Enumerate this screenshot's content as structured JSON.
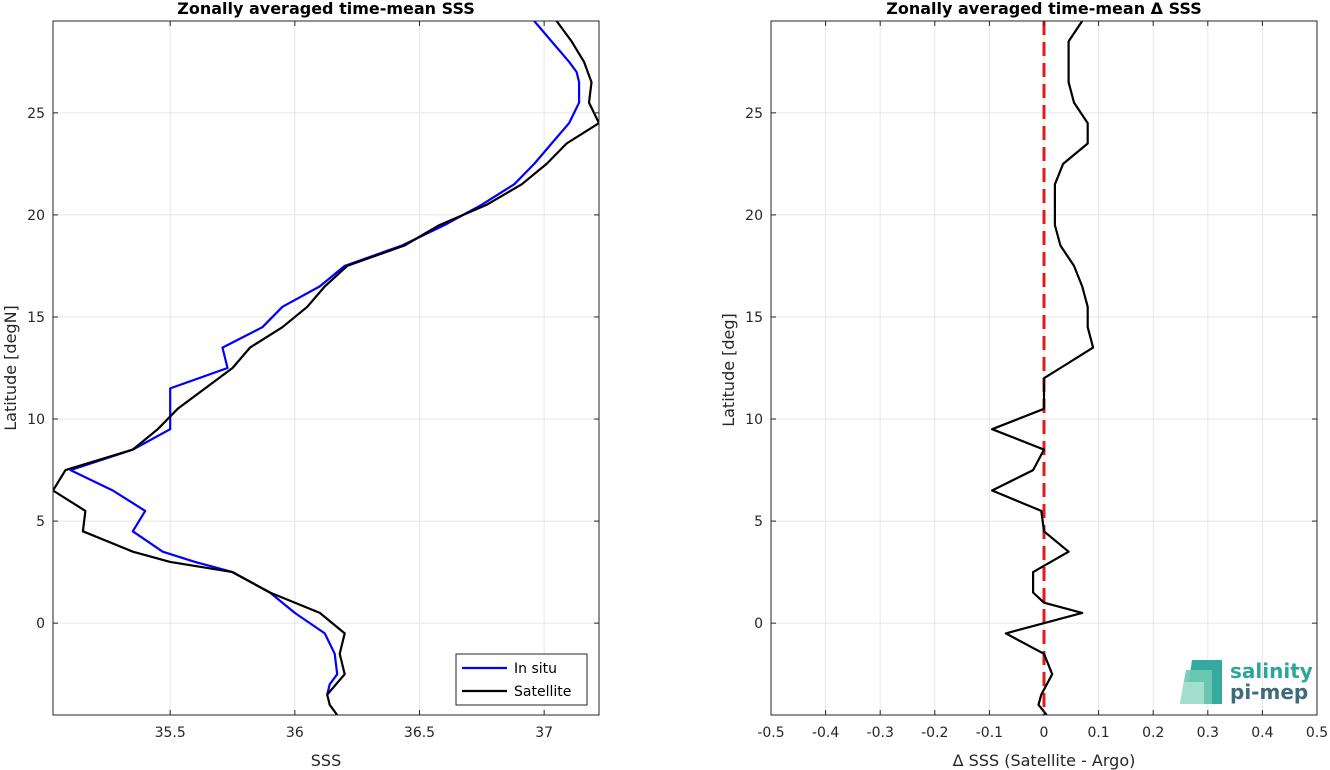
{
  "chart_data": [
    {
      "type": "line",
      "title": "Zonally averaged time-mean SSS",
      "xlabel": "SSS",
      "ylabel": "Latitude [degN]",
      "xlim": [
        35.03,
        37.22
      ],
      "ylim": [
        -4.5,
        29.5
      ],
      "xticks": [
        35.5,
        36,
        36.5,
        37
      ],
      "yticks": [
        0,
        5,
        10,
        15,
        20,
        25
      ],
      "xticklabels": [
        "35.5",
        "36",
        "36.5",
        "37"
      ],
      "yticklabels": [
        "0",
        "5",
        "10",
        "15",
        "20",
        "25"
      ],
      "grid": true,
      "legend_position": "bottom-right",
      "series": [
        {
          "name": "In situ",
          "color": "#0000ff",
          "x": [
            36.13,
            36.14,
            36.17,
            36.16,
            36.12,
            36.0,
            35.9,
            35.75,
            35.6,
            35.47,
            35.35,
            35.4,
            35.27,
            35.1,
            35.35,
            35.5,
            35.5,
            35.5,
            35.73,
            35.71,
            35.87,
            35.95,
            36.1,
            36.2,
            36.43,
            36.6,
            36.75,
            36.88,
            36.96,
            37.03,
            37.1,
            37.14,
            37.14,
            37.13,
            37.1,
            37.03,
            36.96
          ],
          "y": [
            -3.5,
            -3.0,
            -2.5,
            -1.5,
            -0.5,
            0.5,
            1.5,
            2.5,
            3.0,
            3.5,
            4.5,
            5.5,
            6.5,
            7.5,
            8.5,
            9.5,
            10.5,
            11.5,
            12.5,
            13.5,
            14.5,
            15.5,
            16.5,
            17.5,
            18.5,
            19.5,
            20.5,
            21.5,
            22.5,
            23.5,
            24.5,
            25.5,
            26.5,
            27.0,
            27.5,
            28.5,
            29.5
          ]
        },
        {
          "name": "Satellite",
          "color": "#000000",
          "x": [
            36.17,
            36.14,
            36.13,
            36.2,
            36.18,
            36.2,
            36.1,
            35.9,
            35.75,
            35.5,
            35.35,
            35.15,
            35.16,
            35.03,
            35.08,
            35.35,
            35.45,
            35.53,
            35.75,
            35.82,
            35.95,
            36.05,
            36.12,
            36.21,
            36.44,
            36.58,
            36.77,
            36.91,
            37.01,
            37.09,
            37.22,
            37.18,
            37.19,
            37.16,
            37.11,
            37.05,
            37.0
          ],
          "y": [
            -4.5,
            -4.0,
            -3.5,
            -2.5,
            -1.5,
            -0.5,
            0.5,
            1.5,
            2.5,
            3.0,
            3.5,
            4.5,
            5.5,
            6.5,
            7.5,
            8.5,
            9.5,
            10.5,
            12.5,
            13.5,
            14.5,
            15.5,
            16.5,
            17.5,
            18.5,
            19.5,
            20.5,
            21.5,
            22.5,
            23.5,
            24.5,
            25.5,
            26.5,
            27.5,
            28.5,
            29.5,
            30.0
          ]
        }
      ]
    },
    {
      "type": "line",
      "title": "Zonally averaged time-mean Δ SSS",
      "xlabel": "Δ SSS (Satellite - Argo)",
      "ylabel": "Latitude [deg]",
      "xlim": [
        -0.5,
        0.5
      ],
      "ylim": [
        -4.5,
        29.5
      ],
      "xticks": [
        -0.5,
        -0.4,
        -0.3,
        -0.2,
        -0.1,
        0,
        0.1,
        0.2,
        0.3,
        0.4,
        0.5
      ],
      "yticks": [
        0,
        5,
        10,
        15,
        20,
        25
      ],
      "xticklabels": [
        "-0.5",
        "-0.4",
        "-0.3",
        "-0.2",
        "-0.1",
        "0",
        "0.1",
        "0.2",
        "0.3",
        "0.4",
        "0.5"
      ],
      "yticklabels": [
        "0",
        "5",
        "10",
        "15",
        "20",
        "25"
      ],
      "grid": true,
      "reference_line": {
        "x": 0,
        "color": "#e31a1c",
        "style": "dashed"
      },
      "series": [
        {
          "name": "",
          "color": "#000000",
          "x": [
            0.005,
            -0.01,
            -0.005,
            0.015,
            0.0,
            -0.07,
            0.07,
            0.0,
            -0.02,
            -0.02,
            0.045,
            0.0,
            -0.005,
            -0.095,
            -0.02,
            0.0,
            -0.095,
            0.0,
            0.0,
            0.0,
            0.03,
            0.09,
            0.08,
            0.08,
            0.07,
            0.055,
            0.03,
            0.02,
            0.02,
            0.02,
            0.035,
            0.08,
            0.08,
            0.055,
            0.045,
            0.045,
            0.07
          ],
          "y": [
            -4.5,
            -4.0,
            -3.5,
            -2.5,
            -1.5,
            -0.5,
            0.5,
            1.0,
            1.5,
            2.5,
            3.5,
            4.5,
            5.5,
            6.5,
            7.5,
            8.5,
            9.5,
            10.5,
            11.5,
            12.0,
            12.5,
            13.5,
            14.5,
            15.5,
            16.5,
            17.5,
            18.5,
            19.5,
            20.5,
            21.5,
            22.5,
            23.5,
            24.5,
            25.5,
            26.5,
            28.5,
            29.5
          ]
        }
      ]
    }
  ],
  "legend": {
    "items": [
      "In situ",
      "Satellite"
    ]
  },
  "logo": {
    "line1": "salinity",
    "line2": "pi-mep",
    "accent": "#2aa79a",
    "dark": "#3e6b78"
  }
}
